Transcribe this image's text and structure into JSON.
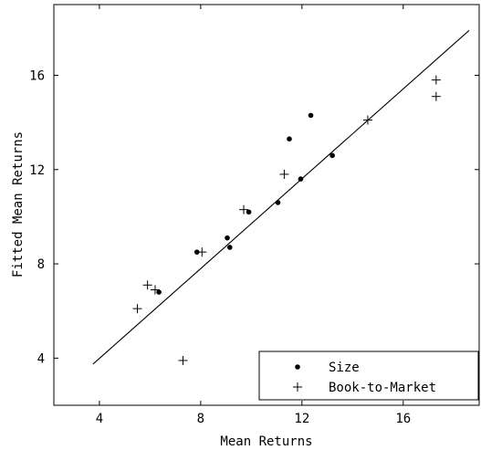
{
  "chart_data": {
    "type": "scatter",
    "title": "",
    "xlabel": "Mean Returns",
    "ylabel": "Fitted Mean Returns",
    "xlim": [
      2.2,
      19.0
    ],
    "ylim": [
      2.0,
      19.0
    ],
    "xticks": [
      4,
      8,
      12,
      16
    ],
    "yticks": [
      4,
      8,
      12,
      16
    ],
    "grid": false,
    "legend_position": "bottom-right",
    "series": [
      {
        "name": "Size",
        "marker": "dot",
        "x": [
          6.35,
          7.85,
          9.05,
          9.15,
          9.9,
          11.05,
          11.5,
          11.95,
          12.35,
          13.2
        ],
        "y": [
          6.8,
          8.5,
          9.1,
          8.7,
          10.2,
          10.6,
          13.3,
          11.6,
          14.3,
          12.6
        ]
      },
      {
        "name": "Book-to-Market",
        "marker": "plus",
        "x": [
          5.5,
          5.9,
          6.2,
          7.3,
          8.05,
          9.7,
          11.3,
          14.6,
          17.3,
          17.3
        ],
        "y": [
          6.1,
          7.1,
          6.9,
          3.9,
          8.5,
          10.3,
          11.8,
          14.1,
          15.1,
          15.8
        ]
      }
    ],
    "fit_line": {
      "x": [
        3.75,
        18.6
      ],
      "y": [
        3.75,
        17.9
      ]
    }
  }
}
